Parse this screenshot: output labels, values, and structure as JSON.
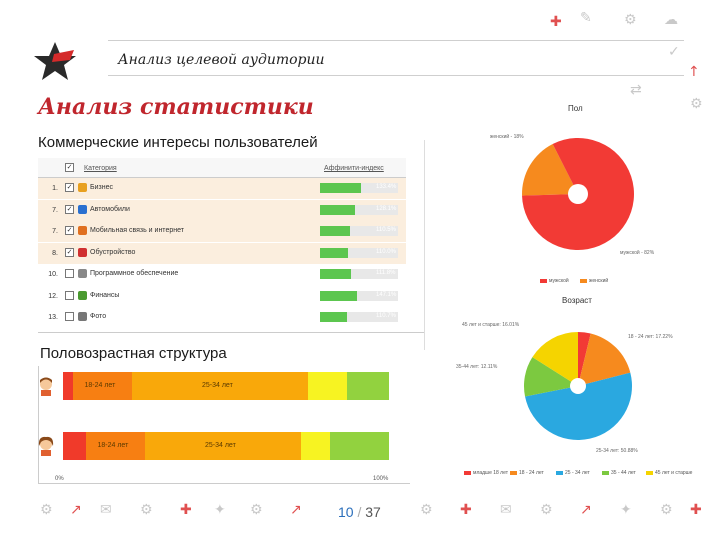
{
  "header": {
    "subtitle": "Анализ целевой аудитории",
    "title": "Анализ статистики"
  },
  "interests": {
    "heading": "Коммерческие интересы пользователей",
    "col_category": "Категория",
    "col_affinity": "Аффинити-индекс",
    "rows": [
      {
        "num": "1.",
        "name": "Бизнес",
        "value": "133.4%",
        "fill": 0.52,
        "checked": true,
        "highlight": true,
        "icon_color": "#e8a020"
      },
      {
        "num": "7.",
        "name": "Автомобили",
        "value": "128.1%",
        "fill": 0.45,
        "checked": true,
        "highlight": true,
        "icon_color": "#2a70d0"
      },
      {
        "num": "7.",
        "name": "Мобильная связь и интернет",
        "value": "110.5%",
        "fill": 0.38,
        "checked": true,
        "highlight": true,
        "icon_color": "#e07020"
      },
      {
        "num": "8.",
        "name": "Обустройство",
        "value": "110.0%",
        "fill": 0.36,
        "checked": true,
        "highlight": true,
        "icon_color": "#d03030"
      },
      {
        "num": "10.",
        "name": "Программное обеспечение",
        "value": "111.8%",
        "fill": 0.4,
        "checked": false,
        "highlight": false,
        "icon_color": "#888888"
      },
      {
        "num": "12.",
        "name": "Финансы",
        "value": "147.1%",
        "fill": 0.48,
        "checked": false,
        "highlight": false,
        "icon_color": "#4a9a30"
      },
      {
        "num": "13.",
        "name": "Фото",
        "value": "110.7%",
        "fill": 0.35,
        "checked": false,
        "highlight": false,
        "icon_color": "#777777"
      }
    ]
  },
  "age_gender": {
    "heading": "Половозрастная структура",
    "male": [
      {
        "label": "",
        "value": 0.03,
        "color": "#f03a2a"
      },
      {
        "label": "18-24 лет",
        "value": 0.18,
        "color": "#f77f12"
      },
      {
        "label": "25-34 лет",
        "value": 0.54,
        "color": "#f9a80a"
      },
      {
        "label": "",
        "value": 0.12,
        "color": "#f7f322"
      },
      {
        "label": "",
        "value": 0.13,
        "color": "#92d23f"
      }
    ],
    "female": [
      {
        "label": "",
        "value": 0.07,
        "color": "#f03a2a"
      },
      {
        "label": "18-24 лет",
        "value": 0.18,
        "color": "#f77f12"
      },
      {
        "label": "25-34 лет",
        "value": 0.48,
        "color": "#f9a80a"
      },
      {
        "label": "",
        "value": 0.09,
        "color": "#f7f322"
      },
      {
        "label": "",
        "value": 0.18,
        "color": "#92d23f"
      }
    ],
    "axis_start": "0%",
    "axis_end": "100%"
  },
  "gender_pie": {
    "title": "Пол",
    "label_female": "женский - 18%",
    "label_male": "мужской - 82%",
    "legend": [
      "мужской",
      "женский"
    ]
  },
  "age_pie": {
    "title": "Возраст",
    "labels": {
      "over45": "45 лет и старше: 16.01%",
      "y18_24": "18 - 24 лет: 17.22%",
      "y35_44": "35-44 лет: 12.11%",
      "y25_34": "25-34 лет: 50.88%"
    },
    "legend": [
      "младше 18 лет",
      "18 - 24 лет",
      "25 - 34 лет",
      "35 - 44 лет",
      "45 лет и старше"
    ]
  },
  "chart_data": [
    {
      "type": "pie",
      "title": "Пол",
      "categories": [
        "мужской",
        "женский"
      ],
      "values": [
        82,
        18
      ],
      "colors": [
        "#f23a35",
        "#f68a1e"
      ]
    },
    {
      "type": "pie",
      "title": "Возраст",
      "categories": [
        "младше 18 лет",
        "18 - 24 лет",
        "25 - 34 лет",
        "35 - 44 лет",
        "45 лет и старше"
      ],
      "values": [
        3.78,
        17.22,
        50.88,
        12.11,
        16.01
      ],
      "colors": [
        "#f23a35",
        "#f68a1e",
        "#2aa8e0",
        "#7cc940",
        "#f5d400"
      ]
    }
  ],
  "footer": {
    "page": "10",
    "sep": "/",
    "total": "37"
  }
}
